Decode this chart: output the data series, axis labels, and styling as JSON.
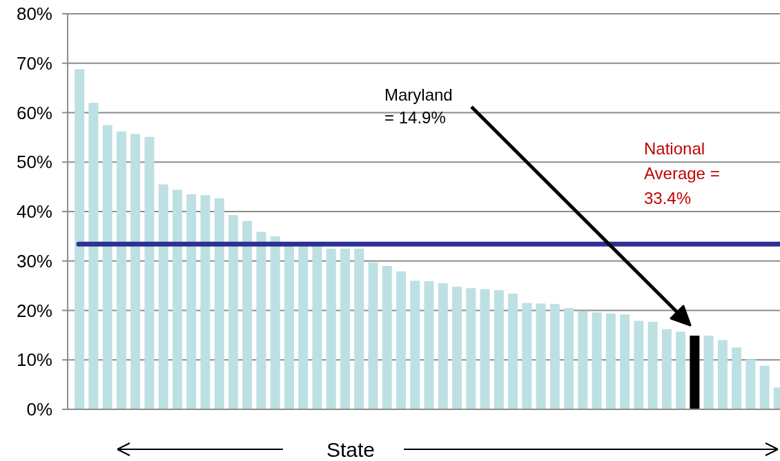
{
  "chart_data": {
    "type": "bar",
    "xlabel": "State",
    "categories": [
      null,
      null,
      null,
      null,
      null,
      null,
      null,
      null,
      null,
      null,
      null,
      null,
      null,
      null,
      null,
      null,
      null,
      null,
      null,
      null,
      null,
      null,
      null,
      null,
      null,
      null,
      null,
      null,
      null,
      null,
      null,
      null,
      null,
      null,
      null,
      null,
      null,
      null,
      null,
      null,
      null,
      null,
      null,
      null,
      null,
      null,
      null,
      null,
      null,
      null,
      null
    ],
    "values": [
      68.8,
      62.0,
      57.5,
      56.2,
      55.7,
      55.1,
      45.5,
      44.4,
      43.5,
      43.3,
      42.7,
      39.3,
      38.1,
      35.9,
      35.0,
      33.6,
      33.5,
      33.3,
      32.5,
      32.5,
      32.5,
      29.7,
      29.0,
      27.9,
      26.0,
      25.9,
      25.5,
      24.8,
      24.5,
      24.3,
      24.1,
      23.4,
      21.5,
      21.4,
      21.3,
      20.5,
      19.8,
      19.6,
      19.4,
      19.2,
      17.9,
      17.7,
      16.2,
      15.7,
      14.9,
      14.9,
      14.0,
      12.5,
      10.1,
      8.8,
      4.4
    ],
    "colors": [
      "#bde0e3",
      "#bde0e3",
      "#bde0e3",
      "#bde0e3",
      "#bde0e3",
      "#bde0e3",
      "#bde0e3",
      "#bde0e3",
      "#bde0e3",
      "#bde0e3",
      "#bde0e3",
      "#bde0e3",
      "#bde0e3",
      "#bde0e3",
      "#bde0e3",
      "#bde0e3",
      "#bde0e3",
      "#bde0e3",
      "#bde0e3",
      "#bde0e3",
      "#bde0e3",
      "#bde0e3",
      "#bde0e3",
      "#bde0e3",
      "#bde0e3",
      "#bde0e3",
      "#bde0e3",
      "#bde0e3",
      "#bde0e3",
      "#bde0e3",
      "#bde0e3",
      "#bde0e3",
      "#bde0e3",
      "#bde0e3",
      "#bde0e3",
      "#bde0e3",
      "#bde0e3",
      "#bde0e3",
      "#bde0e3",
      "#bde0e3",
      "#bde0e3",
      "#bde0e3",
      "#bde0e3",
      "#bde0e3",
      "#000000",
      "#bde0e3",
      "#bde0e3",
      "#bde0e3",
      "#bde0e3",
      "#bde0e3",
      "#bde0e3"
    ],
    "ylim": [
      0,
      80
    ],
    "yticks": [
      {
        "value": 0,
        "label": "0%"
      },
      {
        "value": 10,
        "label": "10%"
      },
      {
        "value": 20,
        "label": "20%"
      },
      {
        "value": 30,
        "label": "30%"
      },
      {
        "value": 40,
        "label": "40%"
      },
      {
        "value": 50,
        "label": "50%"
      },
      {
        "value": 60,
        "label": "60%"
      },
      {
        "value": 70,
        "label": "70%"
      },
      {
        "value": 80,
        "label": "80%"
      }
    ],
    "grid": "y",
    "ref_lines": [
      {
        "axis": "y",
        "value": 33.4,
        "label": "National Average = 33.4%",
        "color": "#2e3192"
      }
    ],
    "annotations": [
      "Maryland = 14.9%"
    ]
  }
}
